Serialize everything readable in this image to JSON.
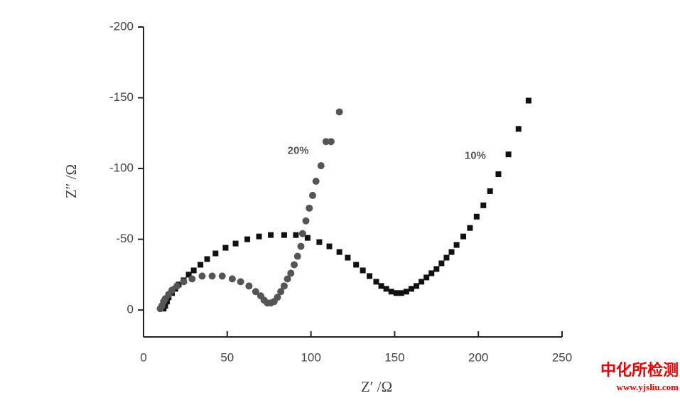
{
  "chart_data": {
    "type": "scatter",
    "x_label": "Z′ /Ω",
    "y_label": "Z″ /Ω",
    "xlim": [
      0,
      250
    ],
    "xticks": [
      0,
      50,
      100,
      150,
      200,
      250
    ],
    "ylim": [
      19,
      -200
    ],
    "yticks": [
      0,
      -50,
      -100,
      -150,
      -200
    ],
    "series": [
      {
        "name": "10%",
        "color": "#111111",
        "marker": "square",
        "x": [
          12,
          13,
          14,
          15,
          17,
          19,
          21,
          24,
          27,
          30,
          34,
          38,
          43,
          49,
          55,
          62,
          69,
          76,
          84,
          91,
          98,
          105,
          111,
          117,
          122,
          127,
          131,
          135,
          139,
          142,
          145,
          148,
          151,
          154,
          157,
          160,
          163,
          166,
          169,
          172,
          175,
          178,
          181,
          184,
          187,
          191,
          195,
          199,
          203,
          207,
          212,
          218,
          224,
          230
        ],
        "values": [
          -1,
          -3,
          -6,
          -9,
          -12,
          -15,
          -18,
          -21,
          -25,
          -28,
          -32,
          -36,
          -40,
          -44,
          -47,
          -50,
          -52,
          -53,
          -53,
          -53,
          -51,
          -48,
          -45,
          -41,
          -37,
          -32,
          -28,
          -24,
          -20,
          -17,
          -15,
          -13,
          -12,
          -12,
          -13,
          -15,
          -17,
          -20,
          -23,
          -26,
          -29,
          -33,
          -37,
          -41,
          -46,
          -52,
          -58,
          -66,
          -74,
          -84,
          -96,
          -110,
          -128,
          -148
        ]
      },
      {
        "name": "20%",
        "color": "#555555",
        "marker": "circle",
        "x": [
          10,
          11,
          12,
          13,
          15,
          17,
          20,
          24,
          29,
          35,
          41,
          47,
          53,
          58,
          63,
          67,
          70,
          72,
          74,
          76,
          78,
          80,
          82,
          84,
          86,
          88,
          90,
          92,
          94,
          95,
          97,
          99,
          101,
          103,
          106,
          109,
          112,
          117
        ],
        "values": [
          -1,
          -3,
          -6,
          -8,
          -11,
          -14,
          -17,
          -20,
          -22,
          -24,
          -24,
          -24,
          -22,
          -20,
          -17,
          -13,
          -10,
          -7,
          -5,
          -5,
          -6,
          -9,
          -13,
          -17,
          -22,
          -26,
          -32,
          -38,
          -45,
          -54,
          -63,
          -72,
          -81,
          -91,
          -102,
          -119,
          -119,
          -140
        ]
      }
    ]
  },
  "watermark": {
    "name": "中化所检测",
    "url": "www.yjsliu.com"
  }
}
